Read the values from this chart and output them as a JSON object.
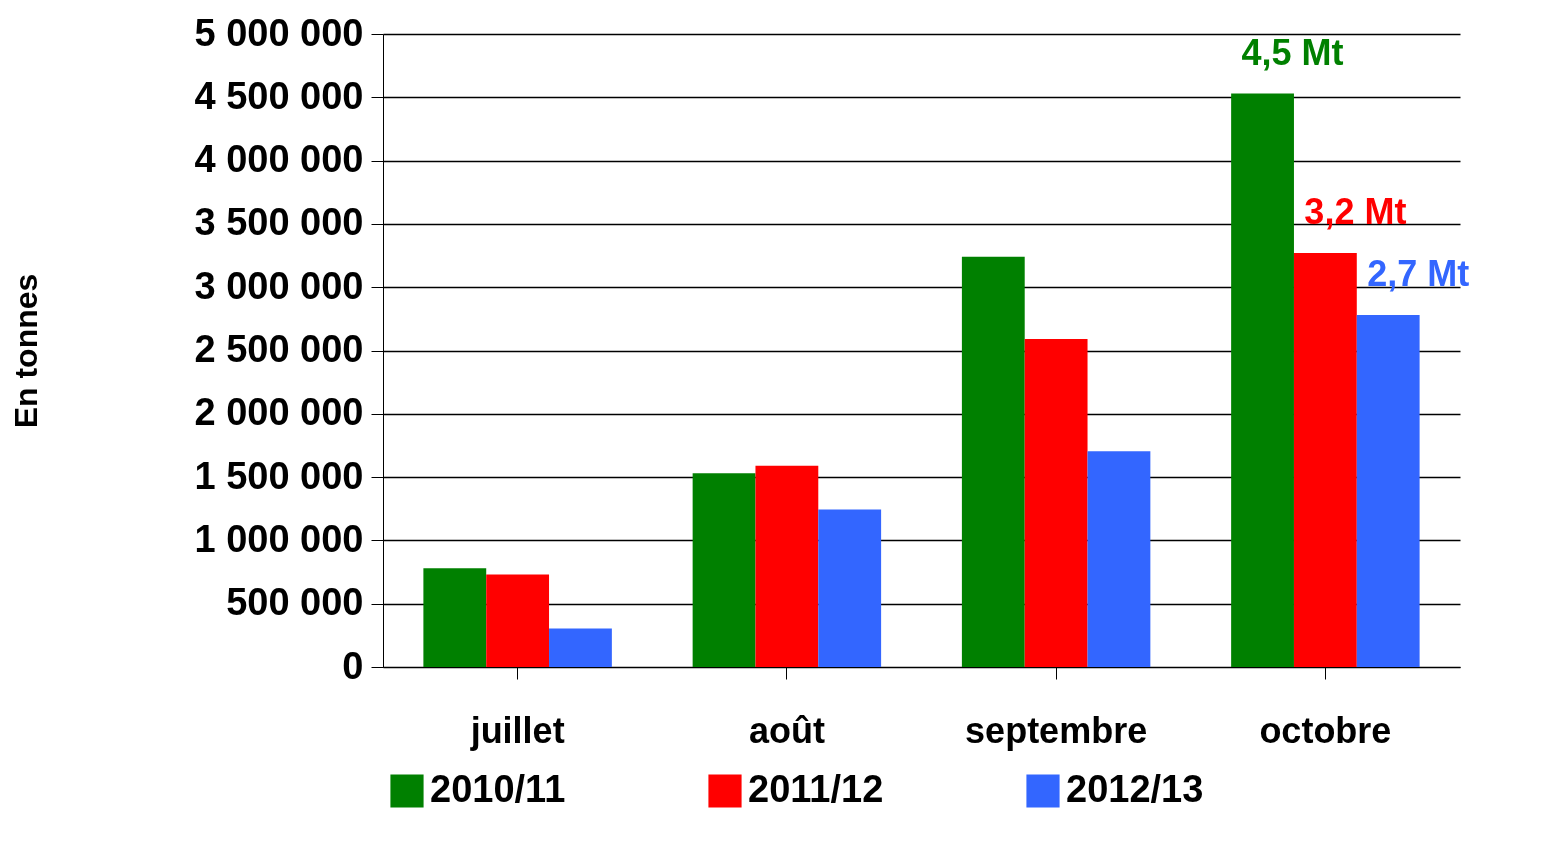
{
  "chart_data": {
    "type": "bar",
    "ylabel": "En tonnes",
    "categories": [
      "juillet",
      "août",
      "septembre",
      "octobre"
    ],
    "series": [
      {
        "name": "2010/11",
        "color": "#008000",
        "values": [
          780000,
          1530000,
          3240000,
          4530000
        ]
      },
      {
        "name": "2011/12",
        "color": "#ff0000",
        "values": [
          730000,
          1590000,
          2590000,
          3270000
        ]
      },
      {
        "name": "2012/13",
        "color": "#3366ff",
        "values": [
          305000,
          1245000,
          1705000,
          2780000
        ]
      }
    ],
    "ylim": [
      0,
      5000000
    ],
    "yticks": [
      0,
      {
        "value": 500000,
        "label": "500 000"
      },
      {
        "value": 1000000,
        "label": "1 000 000"
      },
      {
        "value": 1500000,
        "label": "1 500 000"
      },
      {
        "value": 2000000,
        "label": "2 000 000"
      },
      {
        "value": 2500000,
        "label": "2 500 000"
      },
      {
        "value": 3000000,
        "label": "3 000 000"
      },
      {
        "value": 3500000,
        "label": "3 500 000"
      },
      {
        "value": 4000000,
        "label": "4 000 000"
      },
      {
        "value": 4500000,
        "label": "4 500 000"
      },
      {
        "value": 5000000,
        "label": "5 000 000"
      }
    ],
    "annotations": [
      "4,5 Mt",
      "3,2 Mt",
      "2,7 Mt"
    ],
    "grid": "y",
    "legend": "bottom"
  }
}
